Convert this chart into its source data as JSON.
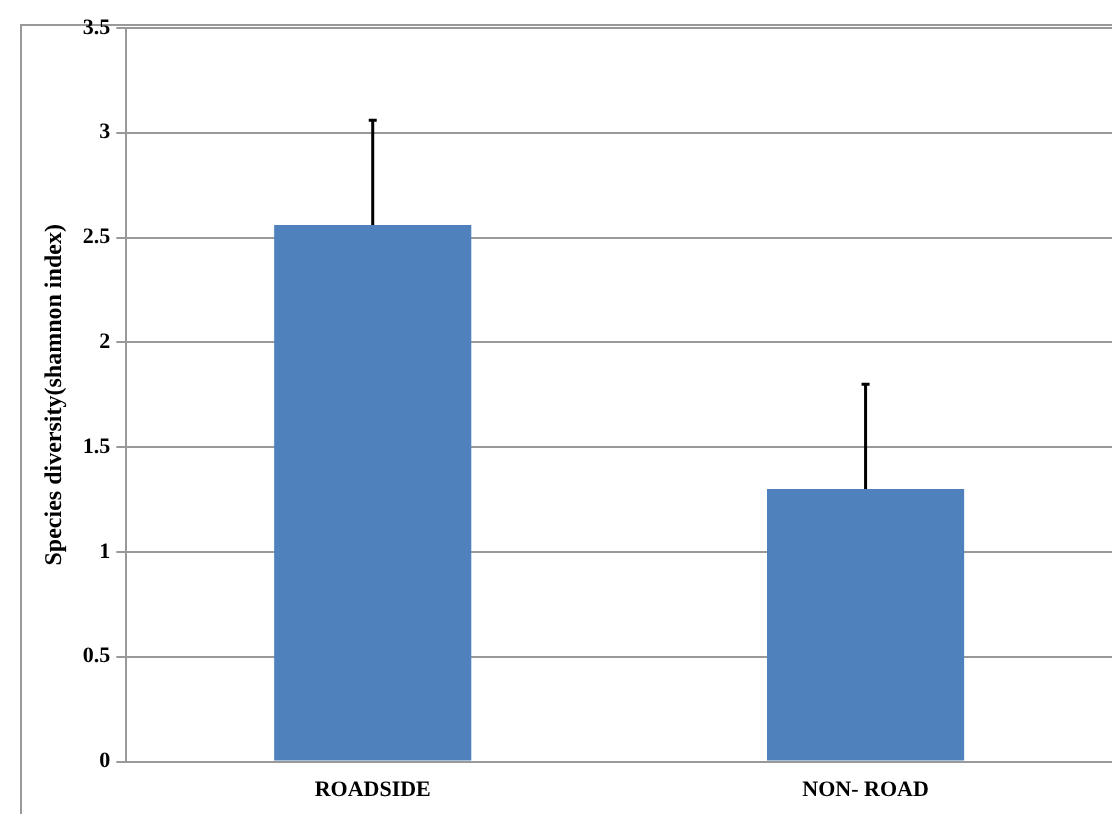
{
  "chart_data": {
    "type": "bar",
    "ylabel": "Species diversity(shamnon index)",
    "categories": [
      "ROADSIDE",
      "NON- ROAD"
    ],
    "series": [
      {
        "color": "#4f81bd",
        "values": [
          2.56,
          1.3
        ],
        "errors": [
          0.5,
          0.5
        ]
      }
    ],
    "ylim": [
      0,
      3.5
    ],
    "yticks": [
      0,
      0.5,
      1,
      1.5,
      2,
      2.5,
      3,
      3.5
    ],
    "grid": "y",
    "legend": false
  }
}
